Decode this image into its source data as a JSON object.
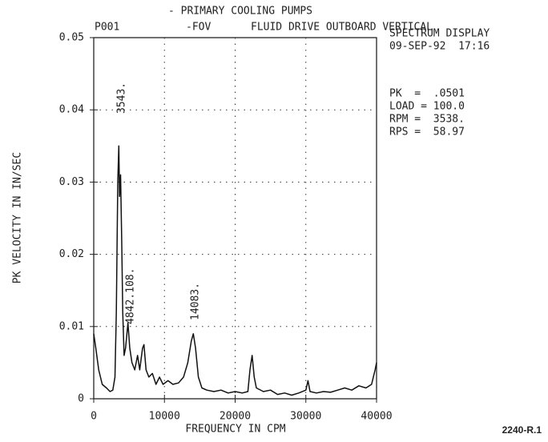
{
  "chart_data": {
    "type": "line",
    "title": "- PRIMARY COOLING PUMPS",
    "header_labels": [
      "P001",
      "-FOV",
      "FLUID DRIVE OUTBOARD VERTICAL"
    ],
    "info": [
      "SPECTRUM DISPLAY",
      "09-SEP-92  17:16",
      "PK  =  .0501",
      "LOAD = 100.0",
      "RPM =  3538.",
      "RPS =  58.97"
    ],
    "x_label": "FREQUENCY IN CPM",
    "y_label": "PK VELOCITY IN IN/SEC",
    "annotations": [
      "3543.",
      "4842.108.",
      "14083."
    ],
    "figure_label": "2240-R.1",
    "xlim": [
      0,
      40000
    ],
    "xticks": [
      0,
      10000,
      20000,
      30000,
      40000
    ],
    "ylim": [
      0,
      0.05
    ],
    "yticks": [
      0,
      0.01,
      0.02,
      0.03,
      0.04,
      0.05
    ],
    "grid": true,
    "x": [
      0,
      300,
      700,
      1200,
      1800,
      2300,
      2700,
      3000,
      3200,
      3400,
      3543,
      3650,
      3800,
      3950,
      4100,
      4300,
      4500,
      4842,
      5100,
      5400,
      5800,
      6200,
      6500,
      6900,
      7108,
      7400,
      7800,
      8300,
      8800,
      9300,
      9800,
      10500,
      11200,
      12000,
      12700,
      13300,
      13800,
      14083,
      14400,
      14800,
      15300,
      16000,
      17000,
      18000,
      19000,
      20000,
      21000,
      21800,
      22100,
      22400,
      22700,
      23000,
      24000,
      25000,
      26000,
      27000,
      28000,
      29000,
      30000,
      30300,
      30600,
      31500,
      32500,
      33500,
      34500,
      35500,
      36500,
      37500,
      38500,
      39300,
      39800,
      40000
    ],
    "series": [
      {
        "color": "#111111",
        "values": [
          0.009,
          0.007,
          0.004,
          0.002,
          0.0015,
          0.001,
          0.0012,
          0.003,
          0.012,
          0.03,
          0.035,
          0.028,
          0.031,
          0.022,
          0.012,
          0.006,
          0.007,
          0.0105,
          0.007,
          0.005,
          0.004,
          0.006,
          0.004,
          0.007,
          0.0075,
          0.004,
          0.003,
          0.0035,
          0.002,
          0.003,
          0.002,
          0.0025,
          0.002,
          0.0022,
          0.003,
          0.005,
          0.008,
          0.009,
          0.007,
          0.003,
          0.0015,
          0.0012,
          0.001,
          0.0012,
          0.0008,
          0.001,
          0.0008,
          0.001,
          0.004,
          0.006,
          0.003,
          0.0015,
          0.001,
          0.0012,
          0.0006,
          0.0008,
          0.0005,
          0.0008,
          0.0012,
          0.0025,
          0.001,
          0.0008,
          0.001,
          0.0009,
          0.0012,
          0.0015,
          0.0012,
          0.0018,
          0.0015,
          0.002,
          0.004,
          0.005
        ]
      }
    ]
  }
}
